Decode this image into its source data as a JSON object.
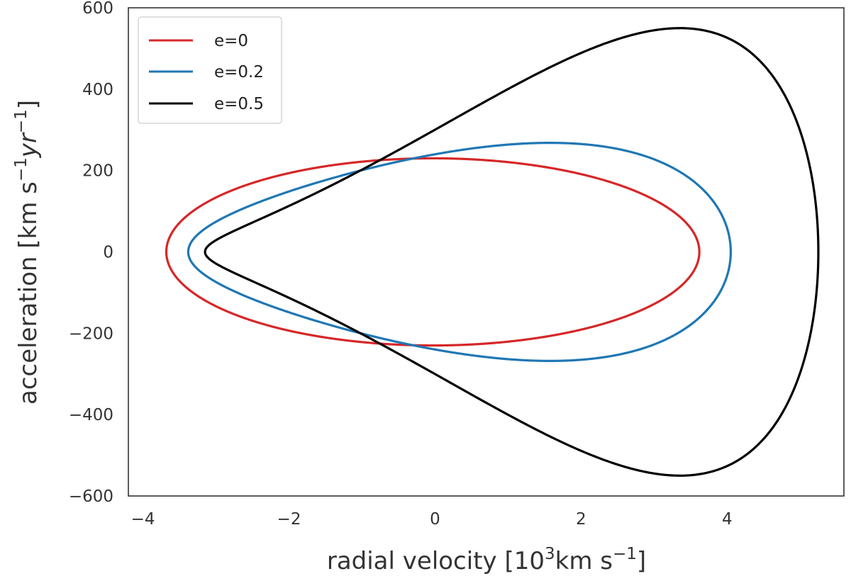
{
  "chart_data": {
    "type": "line",
    "title": "",
    "xlabel": {
      "prefix": "radial velocity [10",
      "exp": "3",
      "middle": "km s",
      "exp2": "−1",
      "suffix": "]"
    },
    "ylabel": {
      "prefix": "acceleration [km s",
      "exp": "−1",
      "middle": "yr",
      "exp2": "−1",
      "suffix": "]"
    },
    "xlim": [
      -4.2,
      5.6
    ],
    "ylim": [
      -600,
      600
    ],
    "xticks": [
      -4,
      -2,
      0,
      2,
      4
    ],
    "yticks": [
      -600,
      -400,
      -200,
      0,
      200,
      400,
      600
    ],
    "xtick_labels": [
      "−4",
      "−2",
      "0",
      "2",
      "4"
    ],
    "ytick_labels": [
      "−600",
      "−400",
      "−200",
      "0",
      "200",
      "400",
      "600"
    ],
    "grid": false,
    "legend_position": "top-left",
    "series": [
      {
        "name": "e=0",
        "eccentricity": 0.0,
        "color": "#d62728",
        "vmin": -3.68,
        "vmax": 3.62,
        "amax": 230
      },
      {
        "name": "e=0.2",
        "eccentricity": 0.2,
        "color": "#1f77b4",
        "vmin": -3.38,
        "vmax": 4.05,
        "amax": 268
      },
      {
        "name": "e=0.5",
        "eccentricity": 0.5,
        "color": "#000000",
        "vmin": -3.15,
        "vmax": 5.25,
        "amax": 550
      }
    ]
  }
}
